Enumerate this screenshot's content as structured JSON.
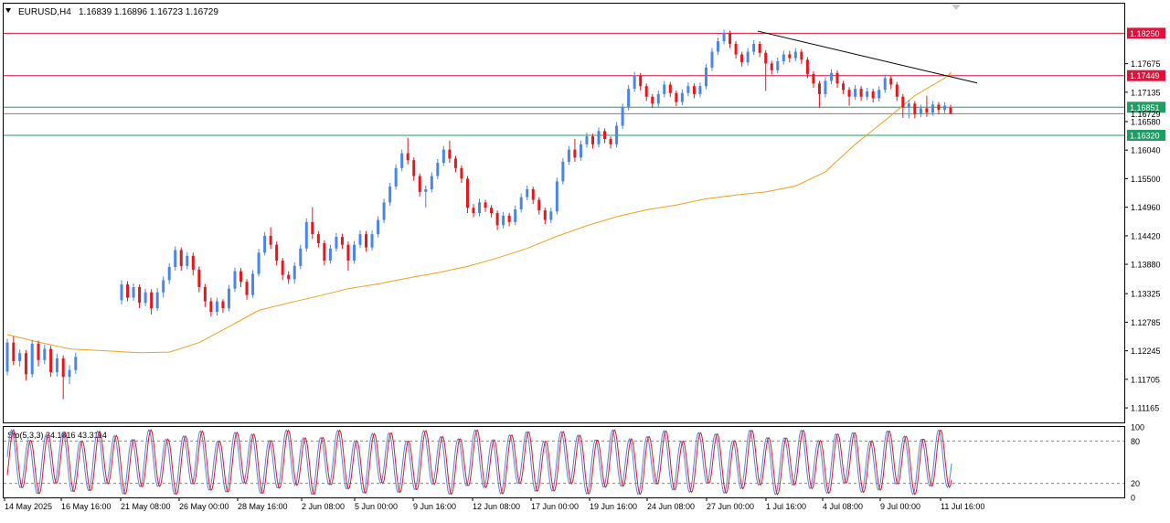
{
  "header": {
    "symbol": "EURUSD,H4",
    "ohlc": "1.16839 1.16896 1.16723 1.16729"
  },
  "indicator": {
    "label": "Sto(5,3,3) 34.1816 43.3114",
    "levels": [
      "100",
      "80",
      "20",
      "0"
    ]
  },
  "colors": {
    "bull": "#4A86E8",
    "bear": "#E8151B",
    "ma": "#F0A020",
    "trendline": "#000000",
    "resistance": "#DC143C",
    "support": "#1E9E64",
    "stoch_main": "#4A86E8",
    "stoch_signal": "#E8151B",
    "grid": "#000000"
  },
  "chart_data": {
    "type": "candlestick",
    "symbol": "EURUSD",
    "timeframe": "H4",
    "ylim": [
      1.1089,
      1.1881
    ],
    "y_ticks": [
      "1.11165",
      "1.11705",
      "1.12245",
      "1.12785",
      "1.13325",
      "1.13880",
      "1.14420",
      "1.14960",
      "1.15500",
      "1.16040",
      "1.16580",
      "1.17135",
      "1.17675"
    ],
    "x_ticks": [
      "14 May 2025",
      "16 May 16:00",
      "21 May 08:00",
      "26 May 00:00",
      "28 May 16:00",
      "2 Jun 08:00",
      "5 Jun 00:00",
      "9 Jun 16:00",
      "12 Jun 08:00",
      "17 Jun 00:00",
      "19 Jun 16:00",
      "24 Jun 08:00",
      "27 Jun 00:00",
      "1 Jul 16:00",
      "4 Jul 08:00",
      "9 Jul 00:00",
      "11 Jul 16:00"
    ],
    "levels": [
      {
        "label": "1.18250",
        "value": 1.1825,
        "kind": "resistance"
      },
      {
        "label": "1.17449",
        "value": 1.17449,
        "kind": "resistance"
      },
      {
        "label": "1.16851",
        "value": 1.16851,
        "kind": "support"
      },
      {
        "label": "1.16729",
        "value": 1.16729,
        "kind": "current"
      },
      {
        "label": "1.16320",
        "value": 1.1632,
        "kind": "support"
      }
    ],
    "trendline": [
      {
        "x": "1 Jul 00:00",
        "y": 1.1829
      },
      {
        "x": "14 Jul 04:00",
        "y": 1.1731
      }
    ],
    "moving_average_path": [
      [
        0,
        1.1255
      ],
      [
        5,
        1.1241
      ],
      [
        10,
        1.1228
      ],
      [
        15,
        1.1221
      ],
      [
        20,
        1.1222
      ],
      [
        25,
        1.124
      ],
      [
        30,
        1.127
      ],
      [
        35,
        1.1301
      ],
      [
        40,
        1.1315
      ],
      [
        45,
        1.1328
      ],
      [
        50,
        1.1342
      ],
      [
        55,
        1.1351
      ],
      [
        60,
        1.1362
      ],
      [
        65,
        1.1372
      ],
      [
        70,
        1.1384
      ],
      [
        75,
        1.14
      ],
      [
        80,
        1.1418
      ],
      [
        85,
        1.1441
      ],
      [
        90,
        1.1461
      ],
      [
        95,
        1.1478
      ],
      [
        100,
        1.1491
      ],
      [
        105,
        1.15
      ],
      [
        110,
        1.1512
      ],
      [
        115,
        1.1519
      ],
      [
        120,
        1.1525
      ],
      [
        125,
        1.1536
      ],
      [
        130,
        1.1563
      ],
      [
        135,
        1.1615
      ],
      [
        140,
        1.166
      ],
      [
        145,
        1.1707
      ],
      [
        150,
        1.174
      ],
      [
        155,
        1.175
      ],
      [
        160,
        1.1752
      ],
      [
        165,
        1.175
      ],
      [
        170,
        1.1743
      ]
    ],
    "candles": [
      [
        1.1185,
        1.124,
        1.1178,
        1.1247
      ],
      [
        1.124,
        1.1205,
        1.1198,
        1.1252
      ],
      [
        1.1205,
        1.122,
        1.1195,
        1.1227
      ],
      [
        1.122,
        1.118,
        1.1168,
        1.1226
      ],
      [
        1.118,
        1.1238,
        1.1174,
        1.1245
      ],
      [
        1.1238,
        1.1207,
        1.1195,
        1.1244
      ],
      [
        1.1207,
        1.1228,
        1.1199,
        1.1236
      ],
      [
        1.1228,
        1.1184,
        1.1175,
        1.1234
      ],
      [
        1.1184,
        1.121,
        1.1176,
        1.1219
      ],
      [
        1.121,
        1.1175,
        1.1133,
        1.1216
      ],
      [
        1.1175,
        1.1188,
        1.1161,
        1.1197
      ],
      [
        1.1188,
        1.1213,
        1.1181,
        1.1221
      ],
      [
        1.132,
        1.135,
        1.1312,
        1.1358
      ],
      [
        1.135,
        1.1325,
        1.1318,
        1.1356
      ],
      [
        1.1325,
        1.1345,
        1.1319,
        1.1352
      ],
      [
        1.1345,
        1.1315,
        1.1305,
        1.135
      ],
      [
        1.1315,
        1.1335,
        1.1309,
        1.1342
      ],
      [
        1.1335,
        1.1305,
        1.1293,
        1.1341
      ],
      [
        1.1305,
        1.1335,
        1.13,
        1.1343
      ],
      [
        1.1335,
        1.1358,
        1.1325,
        1.1365
      ],
      [
        1.1358,
        1.1383,
        1.1351,
        1.139
      ],
      [
        1.1383,
        1.1415,
        1.1376,
        1.1422
      ],
      [
        1.1415,
        1.1385,
        1.1376,
        1.142
      ],
      [
        1.1385,
        1.1404,
        1.1379,
        1.1411
      ],
      [
        1.1404,
        1.1378,
        1.1367,
        1.141
      ],
      [
        1.1378,
        1.1345,
        1.1335,
        1.1384
      ],
      [
        1.1345,
        1.1318,
        1.1307,
        1.1351
      ],
      [
        1.1318,
        1.1298,
        1.1289,
        1.1325
      ],
      [
        1.1298,
        1.1318,
        1.1291,
        1.1325
      ],
      [
        1.1318,
        1.1305,
        1.1296,
        1.1322
      ],
      [
        1.1305,
        1.1342,
        1.1299,
        1.1349
      ],
      [
        1.1342,
        1.1375,
        1.1336,
        1.1382
      ],
      [
        1.1375,
        1.1355,
        1.1345,
        1.1381
      ],
      [
        1.1355,
        1.133,
        1.1321,
        1.136
      ],
      [
        1.133,
        1.137,
        1.1325,
        1.1377
      ],
      [
        1.137,
        1.141,
        1.1365,
        1.1417
      ],
      [
        1.141,
        1.1442,
        1.1405,
        1.1449
      ],
      [
        1.1442,
        1.1425,
        1.1417,
        1.1458
      ],
      [
        1.1425,
        1.1395,
        1.1386,
        1.1431
      ],
      [
        1.1395,
        1.1368,
        1.1358,
        1.14
      ],
      [
        1.1368,
        1.136,
        1.1351,
        1.1375
      ],
      [
        1.136,
        1.1385,
        1.1352,
        1.1392
      ],
      [
        1.1385,
        1.1418,
        1.1379,
        1.1425
      ],
      [
        1.1418,
        1.1468,
        1.1412,
        1.1475
      ],
      [
        1.1468,
        1.1445,
        1.1436,
        1.1496
      ],
      [
        1.1445,
        1.1428,
        1.142,
        1.1451
      ],
      [
        1.1428,
        1.1395,
        1.1386,
        1.1433
      ],
      [
        1.1395,
        1.1418,
        1.1389,
        1.1425
      ],
      [
        1.1418,
        1.144,
        1.1412,
        1.1447
      ],
      [
        1.144,
        1.1425,
        1.1417,
        1.1446
      ],
      [
        1.1425,
        1.1395,
        1.1376,
        1.1431
      ],
      [
        1.1395,
        1.1425,
        1.1389,
        1.1432
      ],
      [
        1.1425,
        1.1445,
        1.1419,
        1.1452
      ],
      [
        1.1445,
        1.142,
        1.1412,
        1.1451
      ],
      [
        1.142,
        1.1445,
        1.1414,
        1.1452
      ],
      [
        1.1445,
        1.1472,
        1.1439,
        1.1479
      ],
      [
        1.1472,
        1.1505,
        1.1466,
        1.1512
      ],
      [
        1.1505,
        1.1535,
        1.1499,
        1.1542
      ],
      [
        1.1535,
        1.157,
        1.1529,
        1.1577
      ],
      [
        1.157,
        1.1598,
        1.1564,
        1.1605
      ],
      [
        1.1598,
        1.1585,
        1.1577,
        1.1627
      ],
      [
        1.1585,
        1.1555,
        1.1546,
        1.159
      ],
      [
        1.1555,
        1.1525,
        1.1516,
        1.156
      ],
      [
        1.1525,
        1.153,
        1.1495,
        1.1537
      ],
      [
        1.153,
        1.1555,
        1.1524,
        1.1562
      ],
      [
        1.1555,
        1.158,
        1.1549,
        1.1587
      ],
      [
        1.158,
        1.1605,
        1.1574,
        1.1612
      ],
      [
        1.1605,
        1.1588,
        1.158,
        1.1622
      ],
      [
        1.1588,
        1.157,
        1.1562,
        1.1593
      ],
      [
        1.157,
        1.155,
        1.1542,
        1.1575
      ],
      [
        1.155,
        1.1495,
        1.1485,
        1.1555
      ],
      [
        1.1495,
        1.1485,
        1.1477,
        1.1502
      ],
      [
        1.1485,
        1.1505,
        1.1479,
        1.1512
      ],
      [
        1.1505,
        1.1495,
        1.1487,
        1.151
      ],
      [
        1.1495,
        1.1485,
        1.1477,
        1.15
      ],
      [
        1.1485,
        1.1462,
        1.1453,
        1.149
      ],
      [
        1.1462,
        1.148,
        1.1456,
        1.1487
      ],
      [
        1.148,
        1.1468,
        1.146,
        1.1485
      ],
      [
        1.1468,
        1.1492,
        1.1462,
        1.1499
      ],
      [
        1.1492,
        1.1515,
        1.1486,
        1.1522
      ],
      [
        1.1515,
        1.153,
        1.1509,
        1.1537
      ],
      [
        1.153,
        1.151,
        1.1502,
        1.1535
      ],
      [
        1.151,
        1.149,
        1.1482,
        1.1515
      ],
      [
        1.149,
        1.1472,
        1.1464,
        1.1495
      ],
      [
        1.1472,
        1.1488,
        1.1466,
        1.1495
      ],
      [
        1.1488,
        1.1545,
        1.1482,
        1.1552
      ],
      [
        1.1545,
        1.1582,
        1.1539,
        1.1589
      ],
      [
        1.1582,
        1.1605,
        1.1576,
        1.1612
      ],
      [
        1.1605,
        1.159,
        1.1582,
        1.1625
      ],
      [
        1.159,
        1.1615,
        1.1584,
        1.1622
      ],
      [
        1.1615,
        1.163,
        1.1609,
        1.1637
      ],
      [
        1.163,
        1.1615,
        1.1607,
        1.1635
      ],
      [
        1.1615,
        1.164,
        1.1609,
        1.1647
      ],
      [
        1.164,
        1.1625,
        1.1617,
        1.1645
      ],
      [
        1.1625,
        1.1615,
        1.1607,
        1.163
      ],
      [
        1.1615,
        1.165,
        1.1609,
        1.1657
      ],
      [
        1.165,
        1.1685,
        1.1644,
        1.1692
      ],
      [
        1.1685,
        1.172,
        1.1679,
        1.1727
      ],
      [
        1.172,
        1.1745,
        1.1714,
        1.1752
      ],
      [
        1.1745,
        1.1725,
        1.1717,
        1.175
      ],
      [
        1.1725,
        1.1705,
        1.1697,
        1.173
      ],
      [
        1.1705,
        1.1692,
        1.1684,
        1.171
      ],
      [
        1.1692,
        1.171,
        1.1686,
        1.1717
      ],
      [
        1.171,
        1.1728,
        1.1704,
        1.1735
      ],
      [
        1.1728,
        1.1712,
        1.1704,
        1.1733
      ],
      [
        1.1712,
        1.1695,
        1.1687,
        1.1717
      ],
      [
        1.1695,
        1.1712,
        1.1689,
        1.1719
      ],
      [
        1.1712,
        1.1725,
        1.1706,
        1.1732
      ],
      [
        1.1725,
        1.171,
        1.1702,
        1.173
      ],
      [
        1.171,
        1.1725,
        1.1704,
        1.1732
      ],
      [
        1.1725,
        1.176,
        1.1719,
        1.1767
      ],
      [
        1.176,
        1.179,
        1.1754,
        1.1797
      ],
      [
        1.179,
        1.181,
        1.1784,
        1.1817
      ],
      [
        1.181,
        1.1825,
        1.1804,
        1.1832
      ],
      [
        1.1825,
        1.1805,
        1.1797,
        1.183
      ],
      [
        1.1805,
        1.1785,
        1.1777,
        1.181
      ],
      [
        1.1785,
        1.177,
        1.1762,
        1.179
      ],
      [
        1.177,
        1.179,
        1.1764,
        1.1797
      ],
      [
        1.179,
        1.1805,
        1.1784,
        1.1812
      ],
      [
        1.1805,
        1.1788,
        1.178,
        1.181
      ],
      [
        1.1788,
        1.1768,
        1.1716,
        1.1793
      ],
      [
        1.1768,
        1.1755,
        1.1747,
        1.1773
      ],
      [
        1.1755,
        1.1772,
        1.1749,
        1.1779
      ],
      [
        1.1772,
        1.1785,
        1.1766,
        1.1792
      ],
      [
        1.1785,
        1.1778,
        1.177,
        1.1792
      ],
      [
        1.1778,
        1.179,
        1.1772,
        1.1797
      ],
      [
        1.179,
        1.1775,
        1.1767,
        1.1795
      ],
      [
        1.1775,
        1.1748,
        1.174,
        1.178
      ],
      [
        1.1748,
        1.173,
        1.1722,
        1.1753
      ],
      [
        1.173,
        1.171,
        1.1684,
        1.1735
      ],
      [
        1.171,
        1.1735,
        1.1704,
        1.1742
      ],
      [
        1.1735,
        1.175,
        1.1729,
        1.1757
      ],
      [
        1.175,
        1.173,
        1.1722,
        1.1755
      ],
      [
        1.173,
        1.1718,
        1.171,
        1.1735
      ],
      [
        1.1718,
        1.1705,
        1.1688,
        1.1723
      ],
      [
        1.1705,
        1.172,
        1.1699,
        1.1727
      ],
      [
        1.172,
        1.1705,
        1.1697,
        1.1725
      ],
      [
        1.1705,
        1.1715,
        1.1699,
        1.1722
      ],
      [
        1.1715,
        1.1702,
        1.1694,
        1.172
      ],
      [
        1.1702,
        1.1718,
        1.1696,
        1.1725
      ],
      [
        1.1718,
        1.174,
        1.1712,
        1.1747
      ],
      [
        1.174,
        1.1728,
        1.172,
        1.1745
      ],
      [
        1.1728,
        1.1705,
        1.1697,
        1.1733
      ],
      [
        1.1705,
        1.1685,
        1.1665,
        1.171
      ],
      [
        1.1685,
        1.1692,
        1.1664,
        1.1699
      ],
      [
        1.1692,
        1.1672,
        1.1664,
        1.1697
      ],
      [
        1.1672,
        1.1683,
        1.1666,
        1.169
      ],
      [
        1.1683,
        1.1675,
        1.1667,
        1.1707
      ],
      [
        1.1675,
        1.169,
        1.1669,
        1.1697
      ],
      [
        1.169,
        1.168,
        1.1672,
        1.1695
      ],
      [
        1.168,
        1.1688,
        1.1674,
        1.1695
      ],
      [
        1.1684,
        1.1673,
        1.1672,
        1.169
      ]
    ],
    "stochastic": {
      "name": "Sto(5,3,3)",
      "main_value": "34.1816",
      "signal_value": "43.3114",
      "ylim": [
        0,
        100
      ],
      "overbought": 80,
      "oversold": 20,
      "phase_count": 55,
      "phase_step": 0.72
    }
  }
}
